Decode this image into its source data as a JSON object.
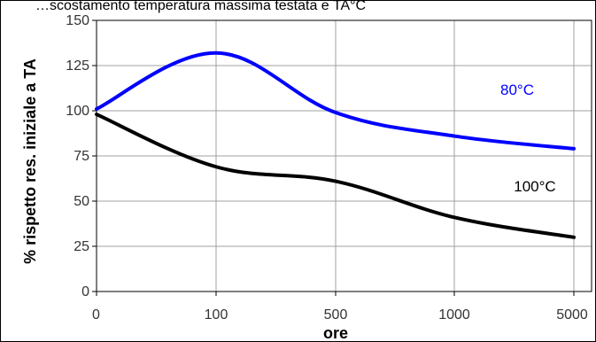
{
  "header": {
    "caption": "…scostamento temperatura massima testata e TA°C"
  },
  "chart_data": {
    "type": "line",
    "xlabel": "ore",
    "ylabel": "% rispetto res. iniziale a TA",
    "ylim": [
      0,
      150
    ],
    "y_ticks": [
      0,
      25,
      50,
      75,
      100,
      125,
      150
    ],
    "x_ticks": [
      "0",
      "100",
      "500",
      "1000",
      "5000"
    ],
    "x_scale": "categorical-piecewise",
    "grid": true,
    "series": [
      {
        "name": "80°C",
        "color": "#0000ff",
        "points": [
          {
            "x": "0",
            "y": 101
          },
          {
            "x": "100",
            "y": 132
          },
          {
            "x": "500",
            "y": 99
          },
          {
            "x": "1000",
            "y": 86
          },
          {
            "x": "5000",
            "y": 79
          }
        ]
      },
      {
        "name": "100°C",
        "color": "#000000",
        "points": [
          {
            "x": "0",
            "y": 98
          },
          {
            "x": "100",
            "y": 69
          },
          {
            "x": "500",
            "y": 61
          },
          {
            "x": "1000",
            "y": 41
          },
          {
            "x": "5000",
            "y": 30
          }
        ]
      }
    ]
  }
}
